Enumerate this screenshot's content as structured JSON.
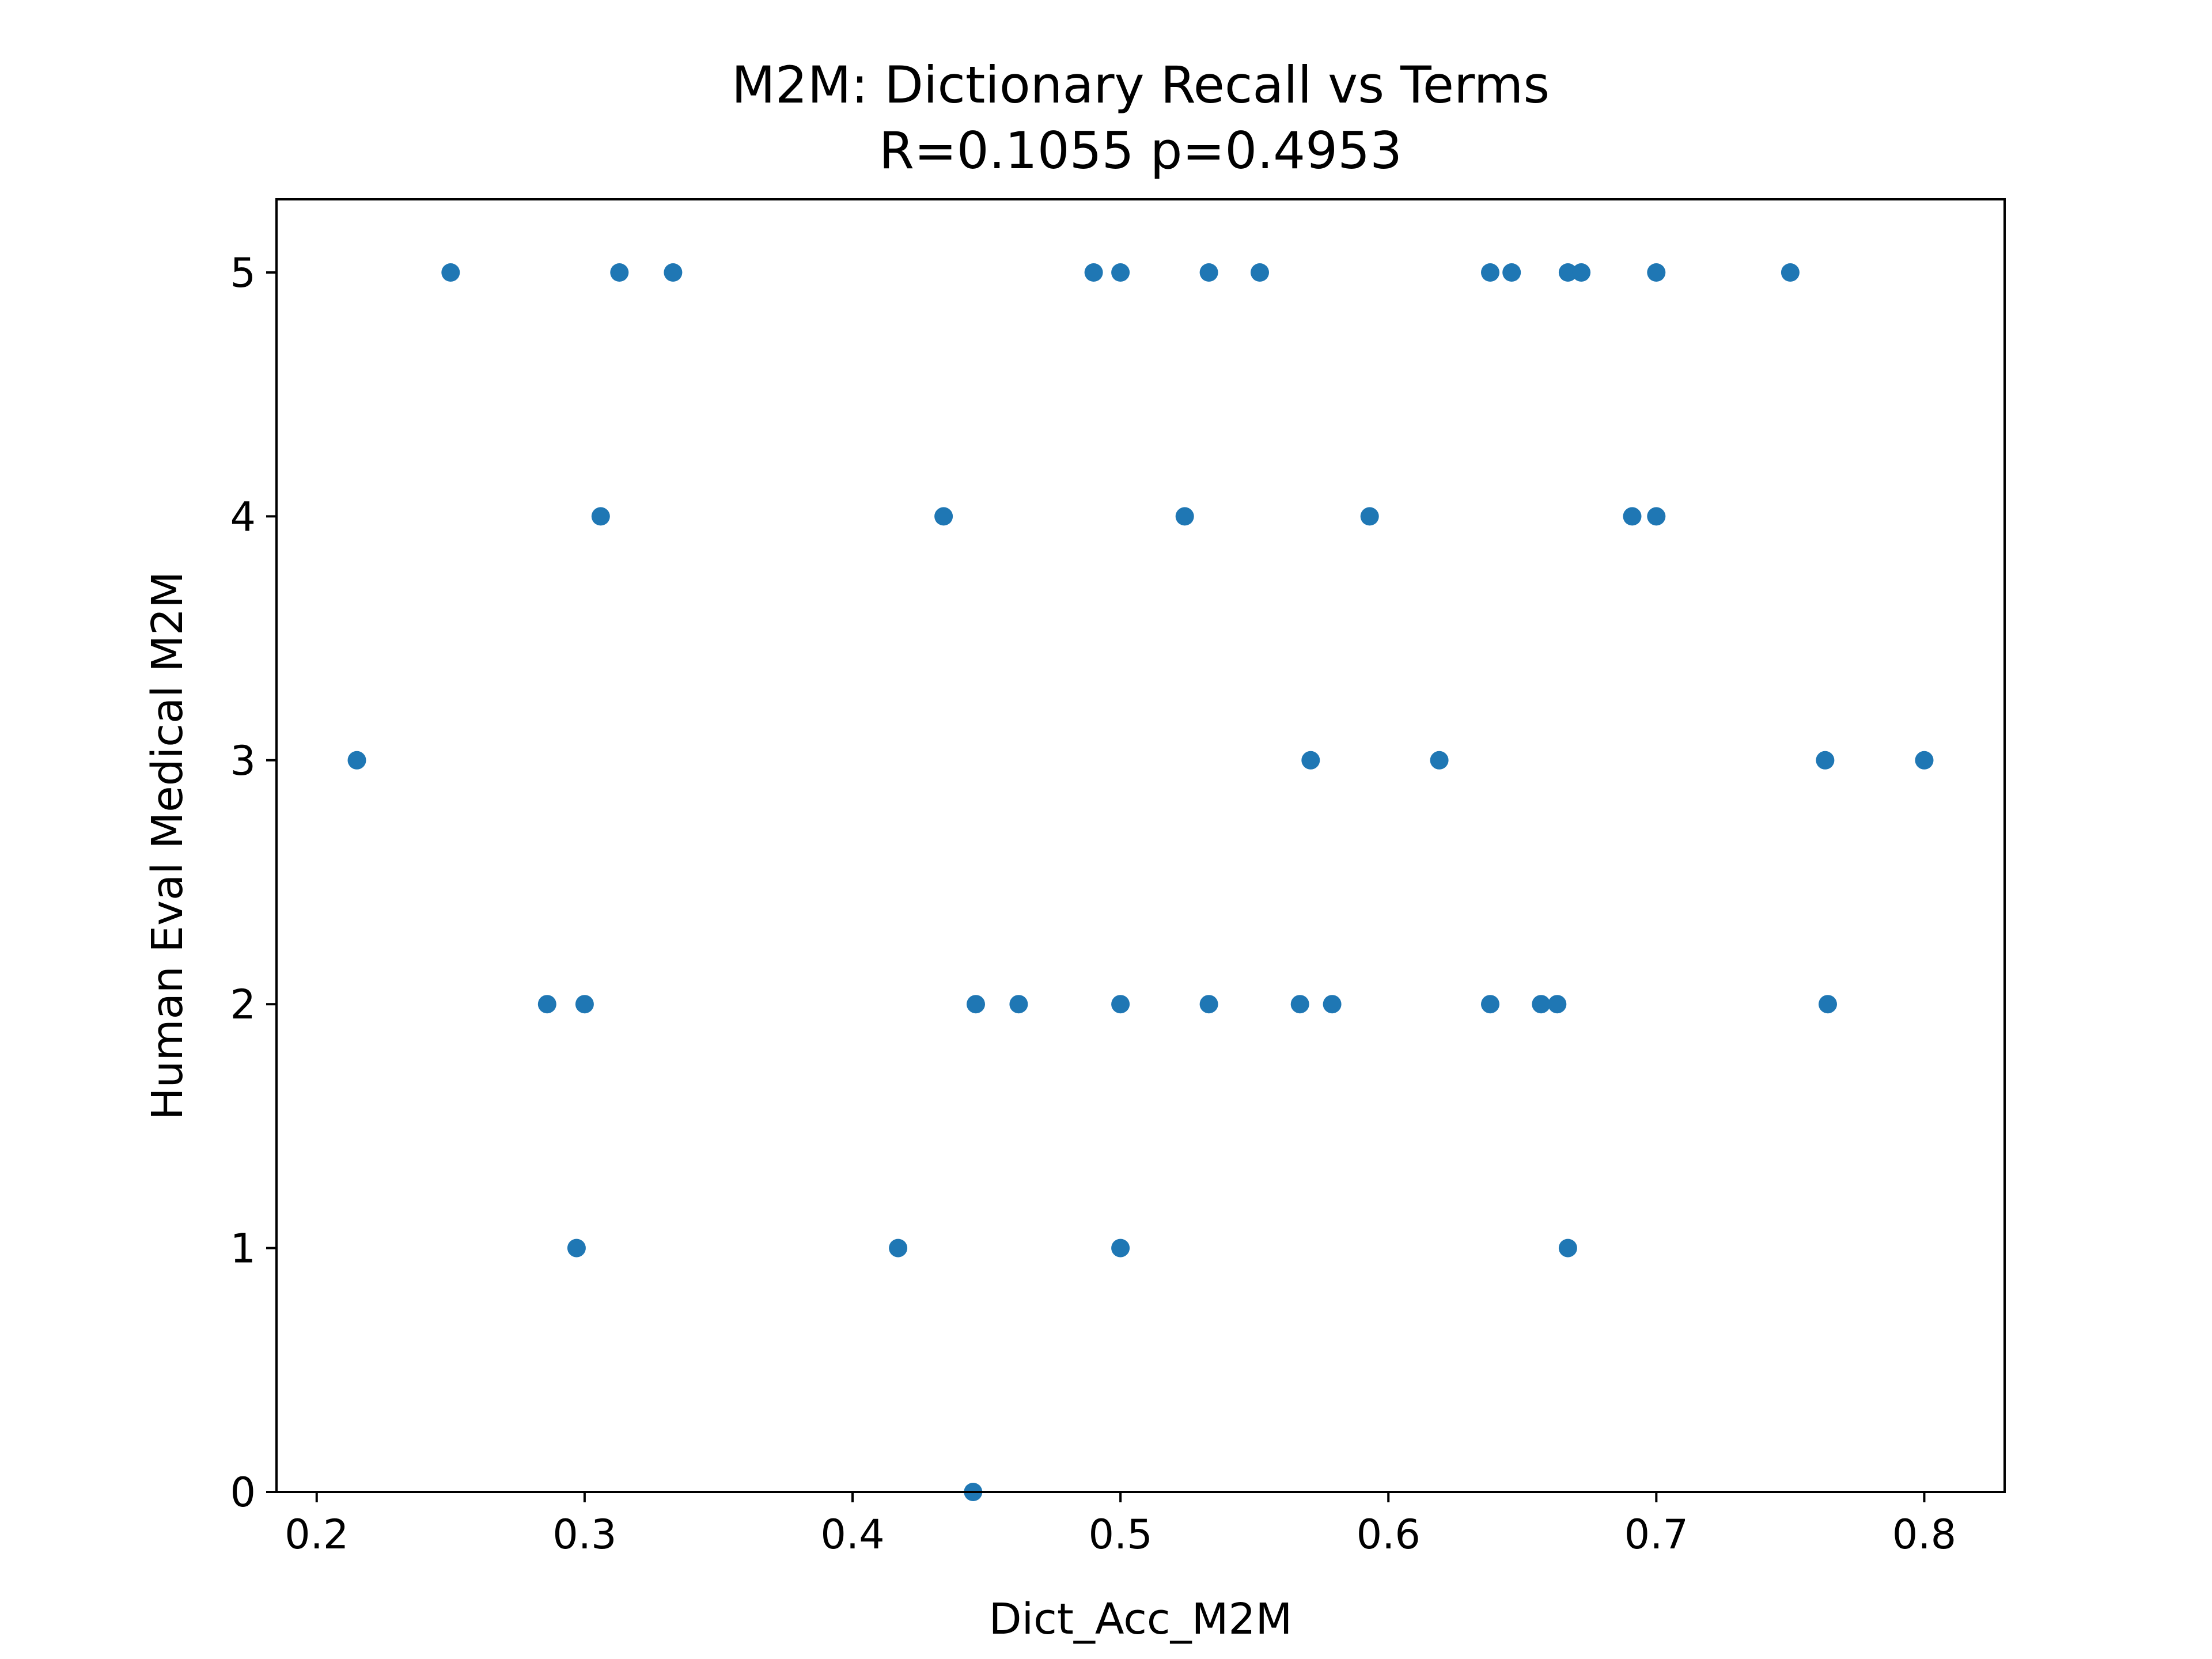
{
  "chart_data": {
    "type": "scatter",
    "title": "M2M: Dictionary Recall vs Terms",
    "subtitle": "R=0.1055 p=0.4953",
    "xlabel": "Dict_Acc_M2M",
    "ylabel": "Human Eval Medical M2M",
    "xlim": [
      0.185,
      0.83
    ],
    "ylim": [
      0,
      5.3
    ],
    "xticks": [
      "0.2",
      "0.3",
      "0.4",
      "0.5",
      "0.6",
      "0.7",
      "0.8"
    ],
    "yticks": [
      "0",
      "1",
      "2",
      "3",
      "4",
      "5"
    ],
    "grid": false,
    "marker_color": "#1f77b4",
    "points": [
      {
        "x": 0.25,
        "y": 5
      },
      {
        "x": 0.313,
        "y": 5
      },
      {
        "x": 0.333,
        "y": 5
      },
      {
        "x": 0.49,
        "y": 5
      },
      {
        "x": 0.5,
        "y": 5
      },
      {
        "x": 0.533,
        "y": 5
      },
      {
        "x": 0.552,
        "y": 5
      },
      {
        "x": 0.638,
        "y": 5
      },
      {
        "x": 0.646,
        "y": 5
      },
      {
        "x": 0.667,
        "y": 5
      },
      {
        "x": 0.672,
        "y": 5
      },
      {
        "x": 0.7,
        "y": 5
      },
      {
        "x": 0.75,
        "y": 5
      },
      {
        "x": 0.306,
        "y": 4
      },
      {
        "x": 0.434,
        "y": 4
      },
      {
        "x": 0.524,
        "y": 4
      },
      {
        "x": 0.593,
        "y": 4
      },
      {
        "x": 0.691,
        "y": 4
      },
      {
        "x": 0.7,
        "y": 4
      },
      {
        "x": 0.215,
        "y": 3
      },
      {
        "x": 0.571,
        "y": 3
      },
      {
        "x": 0.619,
        "y": 3
      },
      {
        "x": 0.763,
        "y": 3
      },
      {
        "x": 0.8,
        "y": 3
      },
      {
        "x": 0.286,
        "y": 2
      },
      {
        "x": 0.3,
        "y": 2
      },
      {
        "x": 0.446,
        "y": 2
      },
      {
        "x": 0.462,
        "y": 2
      },
      {
        "x": 0.5,
        "y": 2
      },
      {
        "x": 0.533,
        "y": 2
      },
      {
        "x": 0.567,
        "y": 2
      },
      {
        "x": 0.579,
        "y": 2
      },
      {
        "x": 0.638,
        "y": 2
      },
      {
        "x": 0.657,
        "y": 2
      },
      {
        "x": 0.663,
        "y": 2
      },
      {
        "x": 0.764,
        "y": 2
      },
      {
        "x": 0.297,
        "y": 1
      },
      {
        "x": 0.417,
        "y": 1
      },
      {
        "x": 0.5,
        "y": 1
      },
      {
        "x": 0.667,
        "y": 1
      },
      {
        "x": 0.445,
        "y": 0
      }
    ]
  }
}
